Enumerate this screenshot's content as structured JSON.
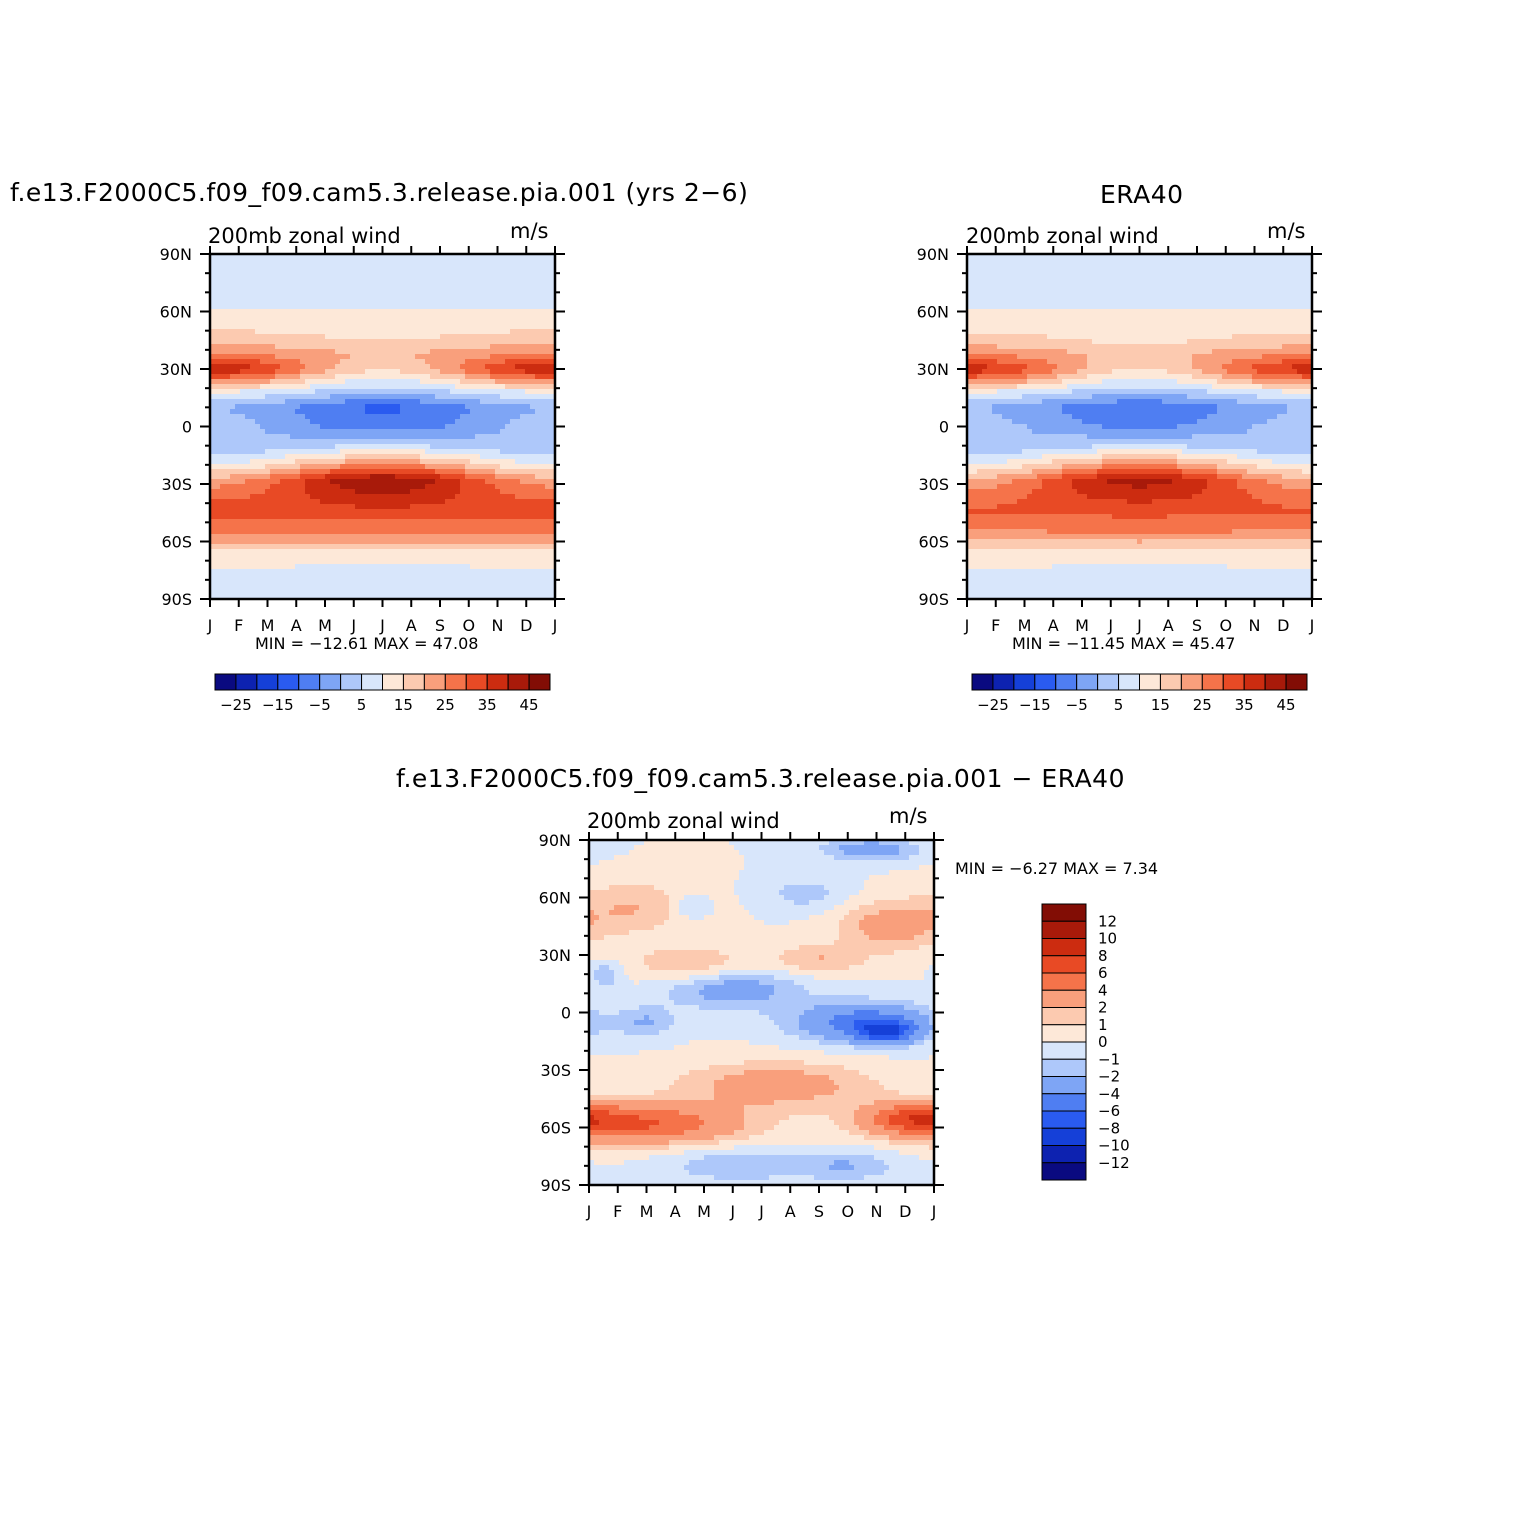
{
  "panel_model": {
    "title": "f.e13.F2000C5.f09_f09.cam5.3.release.pia.001 (yrs 2−6)",
    "subtitle_left": "200mb zonal wind",
    "subtitle_right": "m/s",
    "min_max": "MIN = −12.61 MAX = 47.08"
  },
  "panel_obs": {
    "title": "ERA40",
    "subtitle_left": "200mb zonal wind",
    "subtitle_right": "m/s",
    "min_max": "MIN = −11.45 MAX = 45.47"
  },
  "panel_diff": {
    "title": "f.e13.F2000C5.f09_f09.cam5.3.release.pia.001 − ERA40",
    "subtitle_left": "200mb zonal wind",
    "subtitle_right": "m/s",
    "min_max": "MIN = −6.27 MAX = 7.34"
  },
  "chart_data": [
    {
      "type": "heatmap",
      "title": "f.e13.F2000C5.f09_f09.cam5.3.release.pia.001 (yrs 2−6)",
      "variable": "200mb zonal wind",
      "units": "m/s",
      "x_tick_labels": [
        "J",
        "F",
        "M",
        "A",
        "M",
        "J",
        "J",
        "A",
        "S",
        "O",
        "N",
        "D",
        "J"
      ],
      "y_tick_labels": [
        "90N",
        "60N",
        "30N",
        "0",
        "30S",
        "60S",
        "90S"
      ],
      "ylim": [
        -90,
        90
      ],
      "min": -12.61,
      "max": 47.08,
      "colorbar_ticks": [
        "−25",
        "−15",
        "−5",
        "5",
        "15",
        "25",
        "35",
        "45"
      ],
      "contour_levels": [
        -30,
        -25,
        -20,
        -15,
        -10,
        -5,
        0,
        5,
        10,
        15,
        20,
        25,
        30,
        35,
        40,
        45,
        50
      ],
      "profile": {
        "lat": [
          -90,
          -75,
          -65,
          -55,
          -45,
          -35,
          -28,
          -20,
          -10,
          0,
          10,
          18,
          25,
          30,
          38,
          45,
          55,
          65,
          75,
          90
        ],
        "Jan": [
          10,
          10,
          14,
          26,
          33,
          28,
          22,
          10,
          0,
          2,
          0,
          10,
          28,
          40,
          25,
          18,
          12,
          8,
          5,
          8
        ],
        "Jul": [
          5,
          8,
          14,
          26,
          33,
          40,
          45,
          25,
          5,
          -8,
          -11,
          2,
          10,
          16,
          20,
          15,
          12,
          8,
          5,
          8
        ]
      }
    },
    {
      "type": "heatmap",
      "title": "ERA40",
      "variable": "200mb zonal wind",
      "units": "m/s",
      "x_tick_labels": [
        "J",
        "F",
        "M",
        "A",
        "M",
        "J",
        "J",
        "A",
        "S",
        "O",
        "N",
        "D",
        "J"
      ],
      "y_tick_labels": [
        "90N",
        "60N",
        "30N",
        "0",
        "30S",
        "60S",
        "90S"
      ],
      "ylim": [
        -90,
        90
      ],
      "min": -11.45,
      "max": 45.47,
      "colorbar_ticks": [
        "−25",
        "−15",
        "−5",
        "5",
        "15",
        "25",
        "35",
        "45"
      ],
      "contour_levels": [
        -30,
        -25,
        -20,
        -15,
        -10,
        -5,
        0,
        5,
        10,
        15,
        20,
        25,
        30,
        35,
        40,
        45,
        50
      ],
      "profile": {
        "lat": [
          -90,
          -75,
          -65,
          -55,
          -45,
          -35,
          -28,
          -20,
          -10,
          0,
          10,
          18,
          25,
          30,
          38,
          45,
          55,
          65,
          75,
          90
        ],
        "Jan": [
          10,
          10,
          14,
          24,
          31,
          27,
          21,
          10,
          0,
          2,
          0,
          10,
          28,
          38,
          24,
          17,
          12,
          8,
          5,
          8
        ],
        "Jul": [
          5,
          8,
          14,
          26,
          31,
          38,
          42,
          25,
          5,
          -6,
          -10,
          2,
          10,
          15,
          19,
          14,
          12,
          8,
          5,
          8
        ]
      }
    },
    {
      "type": "heatmap",
      "title": "f.e13.F2000C5.f09_f09.cam5.3.release.pia.001 − ERA40",
      "variable": "200mb zonal wind",
      "units": "m/s",
      "x_tick_labels": [
        "J",
        "F",
        "M",
        "A",
        "M",
        "J",
        "J",
        "A",
        "S",
        "O",
        "N",
        "D",
        "J"
      ],
      "y_tick_labels": [
        "90N",
        "60N",
        "30N",
        "0",
        "30S",
        "60S",
        "90S"
      ],
      "ylim": [
        -90,
        90
      ],
      "min": -6.27,
      "max": 7.34,
      "colorbar_ticks": [
        "12",
        "10",
        "8",
        "6",
        "4",
        "2",
        "1",
        "0",
        "−1",
        "−2",
        "−4",
        "−6",
        "−8",
        "−10",
        "−12"
      ],
      "contour_levels": [
        -14,
        -12,
        -10,
        -8,
        -6,
        -4,
        -2,
        -1,
        0,
        1,
        2,
        4,
        6,
        8,
        10,
        12,
        14
      ]
    }
  ],
  "colors": {
    "palette": [
      "#0a0a80",
      "#0d22b0",
      "#1540d8",
      "#2a5bf0",
      "#4f7ef2",
      "#7ea5f5",
      "#aec8fa",
      "#d8e6fb",
      "#fde8d8",
      "#fccab0",
      "#f99f7c",
      "#f5734a",
      "#e84a25",
      "#cc2c10",
      "#a81a0a",
      "#820d05"
    ]
  }
}
